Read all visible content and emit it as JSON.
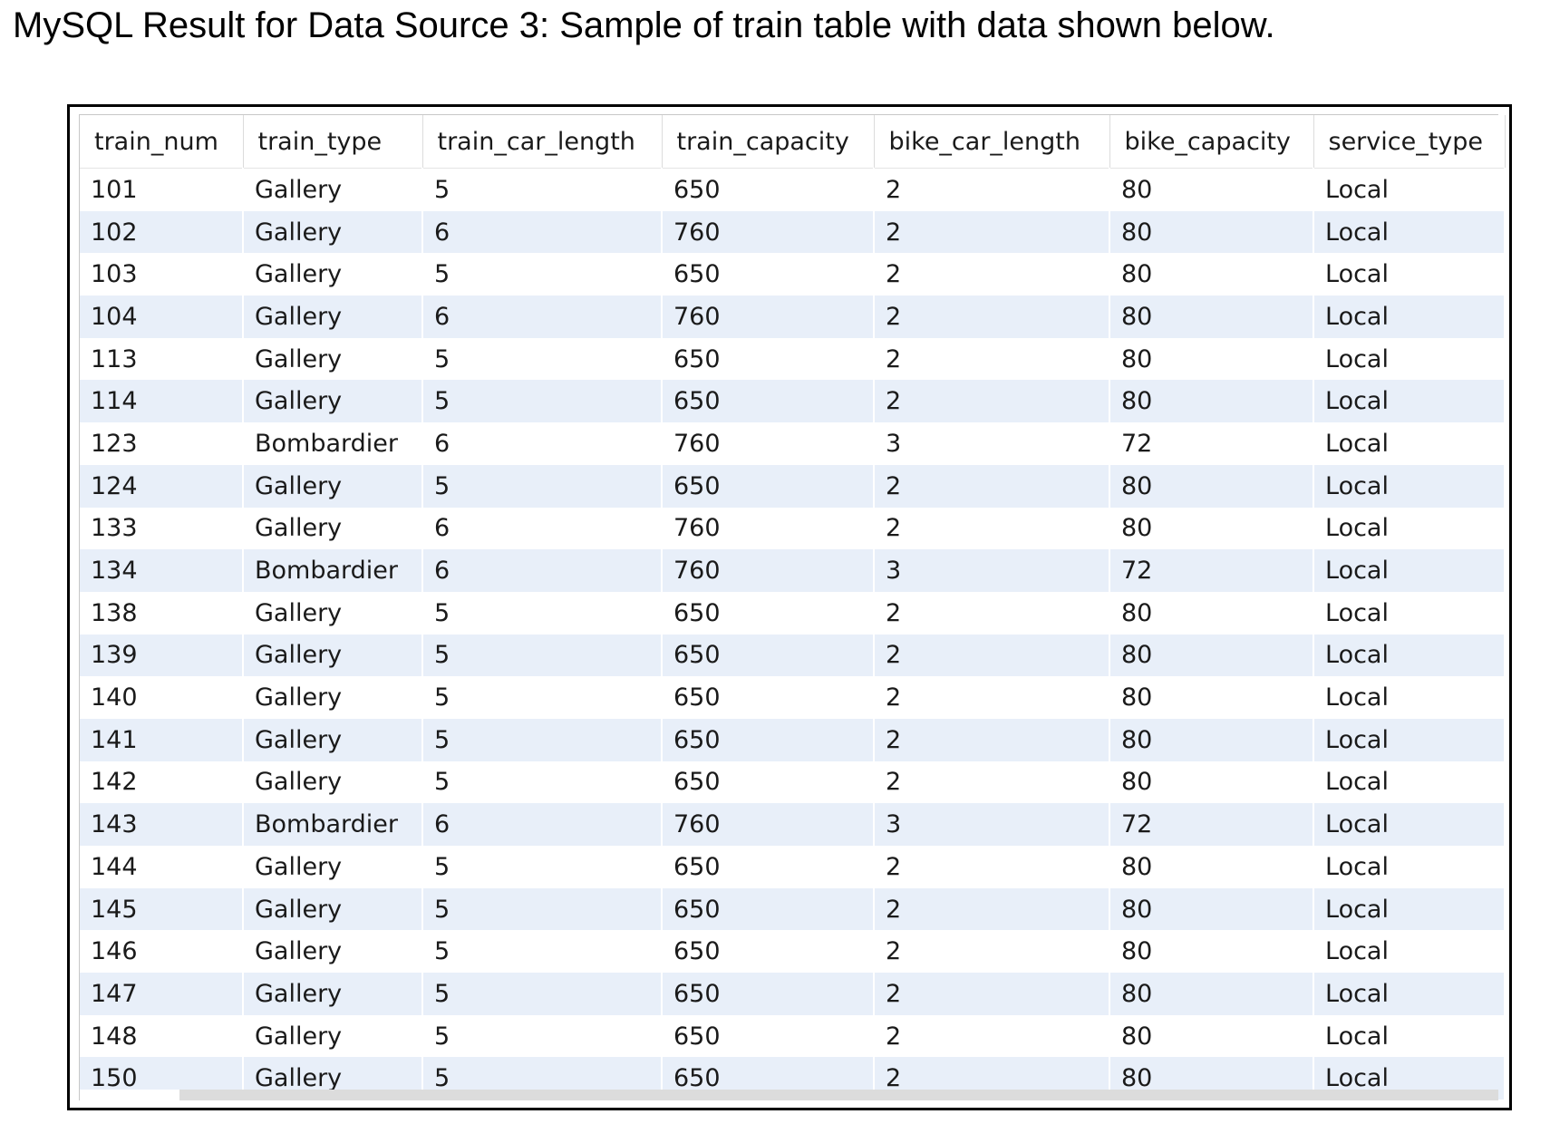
{
  "caption": "MySQL Result for Data Source 3: Sample of train table with data shown below.",
  "columns": [
    "train_num",
    "train_type",
    "train_car_length",
    "train_capacity",
    "bike_car_length",
    "bike_capacity",
    "service_type"
  ],
  "rows": [
    [
      "101",
      "Gallery",
      "5",
      "650",
      "2",
      "80",
      "Local"
    ],
    [
      "102",
      "Gallery",
      "6",
      "760",
      "2",
      "80",
      "Local"
    ],
    [
      "103",
      "Gallery",
      "5",
      "650",
      "2",
      "80",
      "Local"
    ],
    [
      "104",
      "Gallery",
      "6",
      "760",
      "2",
      "80",
      "Local"
    ],
    [
      "113",
      "Gallery",
      "5",
      "650",
      "2",
      "80",
      "Local"
    ],
    [
      "114",
      "Gallery",
      "5",
      "650",
      "2",
      "80",
      "Local"
    ],
    [
      "123",
      "Bombardier",
      "6",
      "760",
      "3",
      "72",
      "Local"
    ],
    [
      "124",
      "Gallery",
      "5",
      "650",
      "2",
      "80",
      "Local"
    ],
    [
      "133",
      "Gallery",
      "6",
      "760",
      "2",
      "80",
      "Local"
    ],
    [
      "134",
      "Bombardier",
      "6",
      "760",
      "3",
      "72",
      "Local"
    ],
    [
      "138",
      "Gallery",
      "5",
      "650",
      "2",
      "80",
      "Local"
    ],
    [
      "139",
      "Gallery",
      "5",
      "650",
      "2",
      "80",
      "Local"
    ],
    [
      "140",
      "Gallery",
      "5",
      "650",
      "2",
      "80",
      "Local"
    ],
    [
      "141",
      "Gallery",
      "5",
      "650",
      "2",
      "80",
      "Local"
    ],
    [
      "142",
      "Gallery",
      "5",
      "650",
      "2",
      "80",
      "Local"
    ],
    [
      "143",
      "Bombardier",
      "6",
      "760",
      "3",
      "72",
      "Local"
    ],
    [
      "144",
      "Gallery",
      "5",
      "650",
      "2",
      "80",
      "Local"
    ],
    [
      "145",
      "Gallery",
      "5",
      "650",
      "2",
      "80",
      "Local"
    ],
    [
      "146",
      "Gallery",
      "5",
      "650",
      "2",
      "80",
      "Local"
    ],
    [
      "147",
      "Gallery",
      "5",
      "650",
      "2",
      "80",
      "Local"
    ],
    [
      "148",
      "Gallery",
      "5",
      "650",
      "2",
      "80",
      "Local"
    ],
    [
      "150",
      "Gallery",
      "5",
      "650",
      "2",
      "80",
      "Local"
    ]
  ]
}
